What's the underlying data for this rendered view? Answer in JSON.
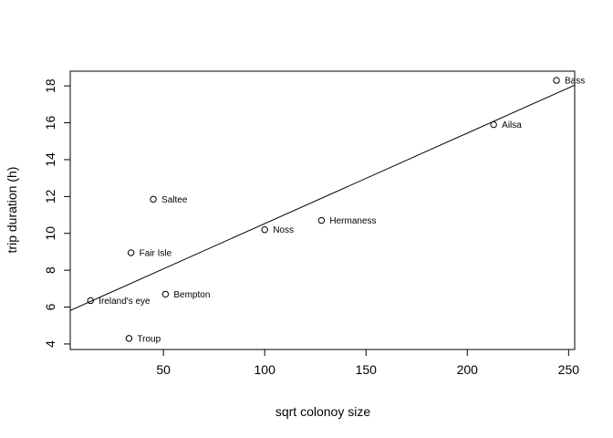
{
  "chart_data": {
    "type": "scatter",
    "title": "",
    "xlabel": "sqrt colonoy size",
    "ylabel": "trip duration (h)",
    "xlim": [
      4,
      253
    ],
    "ylim": [
      3.7,
      18.8
    ],
    "x_ticks": [
      50,
      100,
      150,
      200,
      250
    ],
    "y_ticks": [
      4,
      6,
      8,
      10,
      12,
      14,
      16,
      18
    ],
    "grid": false,
    "legend": "none",
    "points": [
      {
        "label": "Bass",
        "x": 244,
        "y": 18.3
      },
      {
        "label": "Ailsa",
        "x": 213,
        "y": 15.9
      },
      {
        "label": "Saltee",
        "x": 45,
        "y": 11.85
      },
      {
        "label": "Noss",
        "x": 100,
        "y": 10.2
      },
      {
        "label": "Hermaness",
        "x": 128,
        "y": 10.7
      },
      {
        "label": "Fair Isle",
        "x": 34,
        "y": 8.95
      },
      {
        "label": "Ireland's eye",
        "x": 14,
        "y": 6.35
      },
      {
        "label": "Bempton",
        "x": 51,
        "y": 6.7
      },
      {
        "label": "Troup",
        "x": 33,
        "y": 4.3
      }
    ],
    "fit_line": {
      "intercept": 5.62,
      "slope": 0.0491
    },
    "colors": {
      "axis": "#000000",
      "points": "#000000",
      "line": "#000000"
    }
  }
}
